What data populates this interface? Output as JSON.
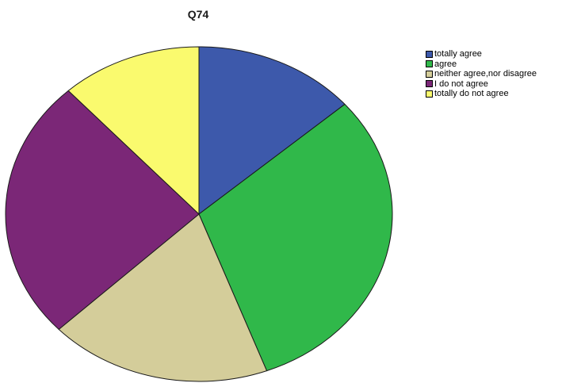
{
  "chart_data": {
    "type": "pie",
    "title": "Q74",
    "categories": [
      "totally agree",
      "agree",
      "neither agree,nor disagree",
      "I do not agree",
      "totally do not agree"
    ],
    "values": [
      13.6,
      30.7,
      18.6,
      25.3,
      11.8
    ],
    "colors": [
      "#3d59ab",
      "#30b84a",
      "#d4cd9a",
      "#7b2777",
      "#fafa6e"
    ],
    "start_angle_deg": 0,
    "direction": "clockwise",
    "legend": "top-right",
    "slice_labels": false
  }
}
